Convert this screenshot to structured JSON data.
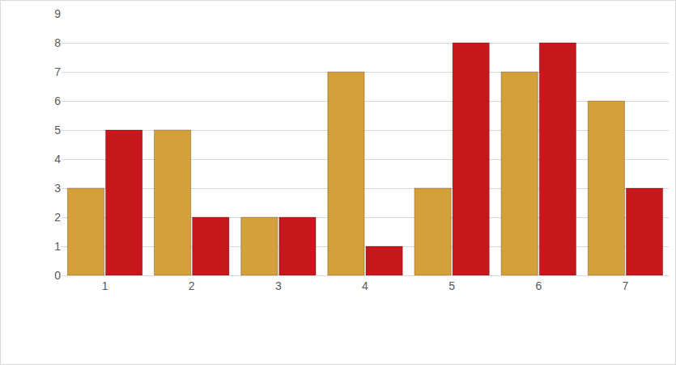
{
  "chart_data": {
    "type": "bar",
    "categories": [
      "1",
      "2",
      "3",
      "4",
      "5",
      "6",
      "7"
    ],
    "series": [
      {
        "color": "#d4a03c",
        "values": [
          3,
          5,
          2,
          7,
          3,
          7,
          6
        ]
      },
      {
        "color": "#c8161d",
        "values": [
          5,
          2,
          2,
          1,
          8,
          8,
          3
        ]
      }
    ],
    "ylim": [
      0,
      9
    ],
    "yticks": [
      0,
      1,
      2,
      3,
      4,
      5,
      6,
      7,
      8,
      9
    ],
    "grid": true
  }
}
